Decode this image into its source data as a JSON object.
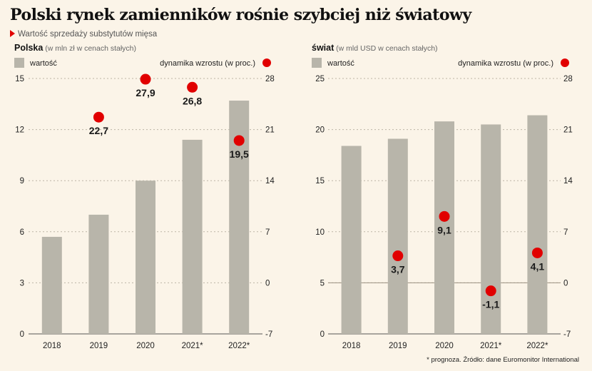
{
  "header": {
    "title": "Polski rynek zamienników rośnie szybciej niż światowy",
    "subtitle": "Wartość sprzedaży substytutów mięsa"
  },
  "colors": {
    "bar": "#b8b5aa",
    "dot": "#e10000",
    "grid": "#bdb5a5",
    "zero": "#9a8f80",
    "background": "#fbf4e8"
  },
  "note": "* prognoza. Źródło: dane Euromonitor International",
  "chart_data": [
    {
      "type": "bar",
      "region": "Polska",
      "unit_label": "(w mln zł w cenach stałych)",
      "legend_bar": "wartość",
      "legend_dot": "dynamika wzrostu (w proc.)",
      "categories": [
        "2018",
        "2019",
        "2020",
        "2021*",
        "2022*"
      ],
      "series": [
        {
          "name": "wartość",
          "axis": "left",
          "values": [
            5.7,
            7.0,
            9.0,
            11.4,
            13.7
          ]
        },
        {
          "name": "dynamika wzrostu (w proc.)",
          "axis": "right",
          "values": [
            null,
            22.7,
            27.9,
            26.8,
            19.5
          ],
          "labels": [
            "",
            "22,7",
            "27,9",
            "26,8",
            "19,5"
          ]
        }
      ],
      "ylim_left": [
        0,
        15
      ],
      "yticks_left": [
        0,
        3,
        6,
        9,
        12,
        15
      ],
      "ylim_right": [
        -7,
        28
      ],
      "yticks_right": [
        "-7",
        "0",
        "7",
        "14",
        "21",
        "28"
      ],
      "grid": true
    },
    {
      "type": "bar",
      "region": "świat",
      "unit_label": "(w mld USD w cenach stałych)",
      "legend_bar": "wartość",
      "legend_dot": "dynamika wzrostu (w proc.)",
      "categories": [
        "2018",
        "2019",
        "2020",
        "2021*",
        "2022*"
      ],
      "series": [
        {
          "name": "wartość",
          "axis": "left",
          "values": [
            18.4,
            19.1,
            20.8,
            20.5,
            21.4
          ]
        },
        {
          "name": "dynamika wzrostu (w proc.)",
          "axis": "right",
          "values": [
            null,
            3.7,
            9.1,
            -1.1,
            4.1
          ],
          "labels": [
            "",
            "3,7",
            "9,1",
            "-1,1",
            "4,1"
          ]
        }
      ],
      "ylim_left": [
        0,
        25
      ],
      "yticks_left": [
        0,
        5,
        10,
        15,
        20,
        25
      ],
      "ylim_right": [
        -7,
        28
      ],
      "yticks_right": [
        "-7",
        "0",
        "7",
        "14",
        "21",
        "28"
      ],
      "grid": true
    }
  ]
}
